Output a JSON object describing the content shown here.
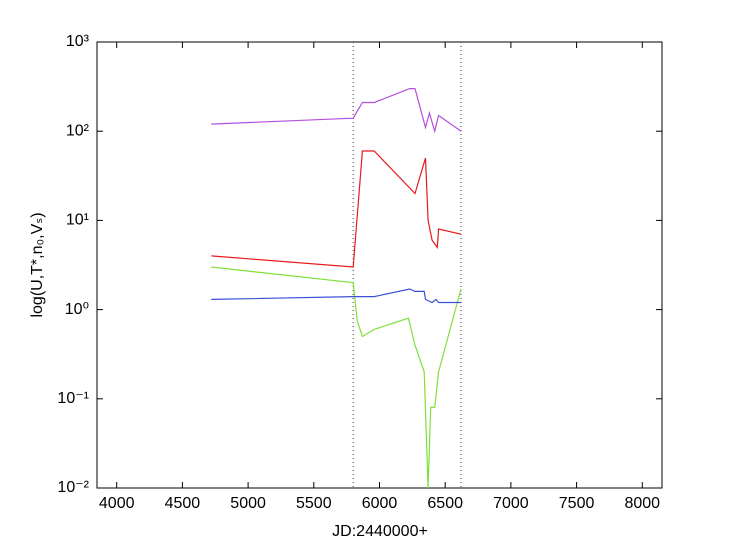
{
  "chart_data": {
    "type": "line",
    "log_y": true,
    "x_label": "JD:2440000+",
    "y_label": "log(U,T*,n₀,Vₛ)",
    "xlim": [
      3850,
      8150
    ],
    "xticks": [
      4000,
      4500,
      5000,
      5500,
      6000,
      6500,
      7000,
      7500,
      8000
    ],
    "ylim": [
      0.01,
      1000
    ],
    "yticks": [
      {
        "value": 0.01,
        "label": "10⁻²"
      },
      {
        "value": 0.1,
        "label": "10⁻¹"
      },
      {
        "value": 1,
        "label": "10⁰"
      },
      {
        "value": 10,
        "label": "10¹"
      },
      {
        "value": 100,
        "label": "10²"
      },
      {
        "value": 1000,
        "label": "10³"
      }
    ],
    "vlines": [
      5800,
      6620
    ],
    "vline_color": "#555555",
    "series": [
      {
        "color": "#b44fe0",
        "x": [
          4720,
          5800,
          5870,
          5960,
          6230,
          6270,
          6350,
          6380,
          6420,
          6450,
          6620
        ],
        "values": [
          120,
          140,
          210,
          210,
          300,
          300,
          110,
          160,
          100,
          150,
          100
        ]
      },
      {
        "color": "#e8191b",
        "x": [
          4720,
          5800,
          5870,
          5960,
          6270,
          6350,
          6370,
          6400,
          6440,
          6450,
          6620
        ],
        "values": [
          4,
          3,
          60,
          60,
          20,
          50,
          10,
          6,
          5,
          8,
          7
        ]
      },
      {
        "color": "#7fe03a",
        "x": [
          4720,
          5800,
          5830,
          5870,
          5960,
          6220,
          6270,
          6340,
          6370,
          6390,
          6420,
          6450,
          6620
        ],
        "values": [
          3,
          2,
          0.75,
          0.5,
          0.6,
          0.8,
          0.4,
          0.2,
          0.01,
          0.08,
          0.08,
          0.2,
          1.7
        ]
      },
      {
        "color": "#3b4fd8",
        "x": [
          4720,
          5800,
          5960,
          6230,
          6270,
          6300,
          6340,
          6350,
          6400,
          6430,
          6450,
          6620
        ],
        "values": [
          1.3,
          1.4,
          1.4,
          1.7,
          1.6,
          1.6,
          1.6,
          1.3,
          1.2,
          1.3,
          1.2,
          1.2
        ]
      }
    ]
  }
}
